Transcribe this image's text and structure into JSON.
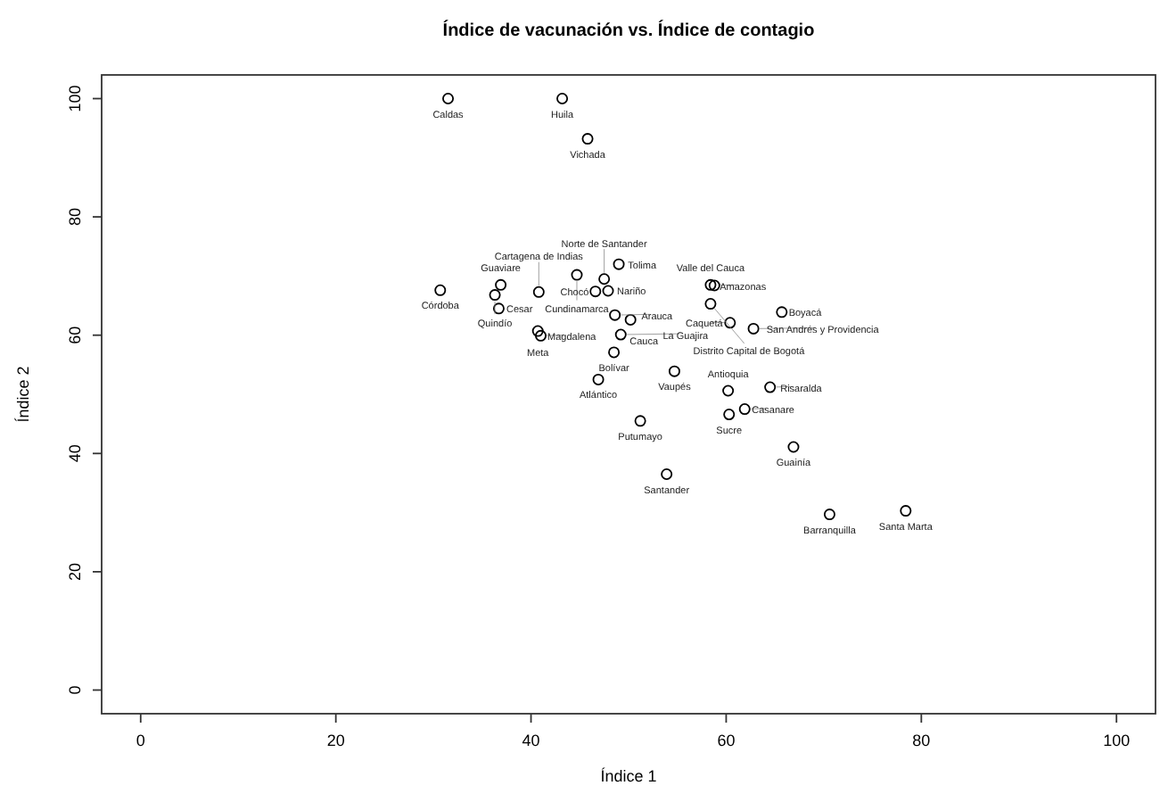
{
  "chart_data": {
    "type": "scatter",
    "title": "Índice de vacunación vs. Índice de contagio",
    "xlabel": "Índice 1",
    "ylabel": "Índice 2",
    "xlim": [
      -4,
      104
    ],
    "ylim": [
      -4,
      104
    ],
    "xticks": [
      0,
      20,
      40,
      60,
      80,
      100
    ],
    "yticks": [
      0,
      20,
      40,
      60,
      80,
      100
    ],
    "marker": "circle",
    "grid": false,
    "series": [
      {
        "color": "#000000",
        "x": [
          31.5,
          43.2,
          45.8,
          30.7,
          36.9,
          36.3,
          36.7,
          40.8,
          40.7,
          41.0,
          44.7,
          47.5,
          46.6,
          47.9,
          49.0,
          48.6,
          50.2,
          49.2,
          48.5,
          46.9,
          54.7,
          51.2,
          58.4,
          58.8,
          58.4,
          60.4,
          62.8,
          65.7,
          60.2,
          64.5,
          61.9,
          60.3,
          66.9,
          53.9,
          70.6,
          78.4
        ],
        "values": [
          100,
          100,
          93.2,
          67.6,
          68.5,
          66.8,
          64.5,
          67.3,
          60.7,
          59.9,
          70.2,
          69.5,
          67.4,
          67.5,
          72.0,
          63.4,
          62.6,
          60.1,
          57.1,
          52.5,
          53.9,
          45.5,
          68.5,
          68.4,
          65.3,
          62.1,
          61.1,
          63.9,
          50.6,
          51.2,
          47.5,
          46.6,
          41.1,
          36.5,
          29.7,
          30.3
        ]
      }
    ],
    "annotations": [
      {
        "text": "Caldas",
        "x": 31.5,
        "y": 100
      },
      {
        "text": "Huila",
        "x": 43.2,
        "y": 100
      },
      {
        "text": "Vichada",
        "x": 45.8,
        "y": 93.2
      },
      {
        "text": "Córdoba",
        "x": 30.7,
        "y": 67.6
      },
      {
        "text": "Guaviare",
        "x": 36.9,
        "y": 68.5
      },
      {
        "text": "Quindío",
        "x": 36.3,
        "y": 66.8
      },
      {
        "text": "Cesar",
        "x": 36.7,
        "y": 64.5
      },
      {
        "text": "Cartagena de Indias",
        "x": 40.8,
        "y": 67.3
      },
      {
        "text": "Meta",
        "x": 40.7,
        "y": 60.7
      },
      {
        "text": "Magdalena",
        "x": 41.0,
        "y": 59.9
      },
      {
        "text": "Cundinamarca",
        "x": 44.7,
        "y": 70.2
      },
      {
        "text": "Norte de Santander",
        "x": 47.5,
        "y": 69.5
      },
      {
        "text": "Chocó",
        "x": 46.6,
        "y": 67.4
      },
      {
        "text": "Nariño",
        "x": 47.9,
        "y": 67.5
      },
      {
        "text": "Tolima",
        "x": 49.0,
        "y": 72.0
      },
      {
        "text": "Arauca",
        "x": 48.6,
        "y": 63.4
      },
      {
        "text": "Cauca",
        "x": 50.2,
        "y": 62.6
      },
      {
        "text": "La Guajira",
        "x": 49.2,
        "y": 60.1
      },
      {
        "text": "Bolívar",
        "x": 48.5,
        "y": 57.1
      },
      {
        "text": "Atlántico",
        "x": 46.9,
        "y": 52.5
      },
      {
        "text": "Vaupés",
        "x": 54.7,
        "y": 53.9
      },
      {
        "text": "Putumayo",
        "x": 51.2,
        "y": 45.5
      },
      {
        "text": "Valle del Cauca",
        "x": 58.4,
        "y": 68.5
      },
      {
        "text": "Amazonas",
        "x": 58.8,
        "y": 68.4
      },
      {
        "text": "Distrito Capital de Bogotá",
        "x": 58.4,
        "y": 65.3
      },
      {
        "text": "Caquetá",
        "x": 60.4,
        "y": 62.1
      },
      {
        "text": "San Andrés y Providencia",
        "x": 62.8,
        "y": 61.1
      },
      {
        "text": "Boyacá",
        "x": 65.7,
        "y": 63.9
      },
      {
        "text": "Antioquia",
        "x": 60.2,
        "y": 50.6
      },
      {
        "text": "Risaralda",
        "x": 64.5,
        "y": 51.2
      },
      {
        "text": "Casanare",
        "x": 61.9,
        "y": 47.5
      },
      {
        "text": "Sucre",
        "x": 60.3,
        "y": 46.6
      },
      {
        "text": "Guainía",
        "x": 66.9,
        "y": 41.1
      },
      {
        "text": "Santander",
        "x": 53.9,
        "y": 36.5
      },
      {
        "text": "Barranquilla",
        "x": 70.6,
        "y": 29.7
      },
      {
        "text": "Santa Marta",
        "x": 78.4,
        "y": 30.3
      }
    ]
  }
}
